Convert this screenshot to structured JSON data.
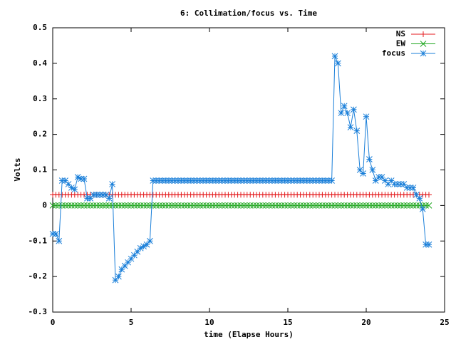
{
  "chart_data": {
    "type": "line",
    "title": "6: Collimation/focus vs. Time",
    "x_label": "time (Elapse Hours)",
    "y_label": "Volts",
    "xlim": [
      0,
      25
    ],
    "xticks": [
      0,
      5,
      10,
      15,
      20,
      25
    ],
    "ylim": [
      -0.3,
      0.5
    ],
    "yticks": [
      -0.3,
      -0.2,
      -0.1,
      0,
      0.1,
      0.2,
      0.3,
      0.4,
      0.5
    ],
    "grid": false,
    "legend": "top-right",
    "x": [
      0,
      0.2,
      0.4,
      0.6,
      0.8,
      1,
      1.2,
      1.4,
      1.6,
      1.8,
      2,
      2.2,
      2.4,
      2.6,
      2.8,
      3,
      3.2,
      3.4,
      3.6,
      3.8,
      4,
      4.2,
      4.4,
      4.6,
      4.8,
      5,
      5.2,
      5.4,
      5.6,
      5.8,
      6,
      6.2,
      6.4,
      6.6,
      6.8,
      7,
      7.2,
      7.4,
      7.6,
      7.8,
      8,
      8.2,
      8.4,
      8.6,
      8.8,
      9,
      9.2,
      9.4,
      9.6,
      9.8,
      10,
      10.2,
      10.4,
      10.6,
      10.8,
      11,
      11.2,
      11.4,
      11.6,
      11.8,
      12,
      12.2,
      12.4,
      12.6,
      12.8,
      13,
      13.2,
      13.4,
      13.6,
      13.8,
      14,
      14.2,
      14.4,
      14.6,
      14.8,
      15,
      15.2,
      15.4,
      15.6,
      15.8,
      16,
      16.2,
      16.4,
      16.6,
      16.8,
      17,
      17.2,
      17.4,
      17.6,
      17.8,
      18,
      18.2,
      18.4,
      18.6,
      18.8,
      19,
      19.2,
      19.4,
      19.6,
      19.8,
      20,
      20.2,
      20.4,
      20.6,
      20.8,
      21,
      21.2,
      21.4,
      21.6,
      21.8,
      22,
      22.2,
      22.4,
      22.6,
      22.8,
      23,
      23.2,
      23.4,
      23.6,
      23.8,
      24
    ],
    "series": [
      {
        "name": "NS",
        "color": "#e41a1c",
        "marker": "plus",
        "values": [
          0.03,
          0.03,
          0.03,
          0.03,
          0.03,
          0.03,
          0.03,
          0.03,
          0.03,
          0.03,
          0.03,
          0.03,
          0.03,
          0.03,
          0.03,
          0.03,
          0.03,
          0.03,
          0.03,
          0.03,
          0.03,
          0.03,
          0.03,
          0.03,
          0.03,
          0.03,
          0.03,
          0.03,
          0.03,
          0.03,
          0.03,
          0.03,
          0.03,
          0.03,
          0.03,
          0.03,
          0.03,
          0.03,
          0.03,
          0.03,
          0.03,
          0.03,
          0.03,
          0.03,
          0.03,
          0.03,
          0.03,
          0.03,
          0.03,
          0.03,
          0.03,
          0.03,
          0.03,
          0.03,
          0.03,
          0.03,
          0.03,
          0.03,
          0.03,
          0.03,
          0.03,
          0.03,
          0.03,
          0.03,
          0.03,
          0.03,
          0.03,
          0.03,
          0.03,
          0.03,
          0.03,
          0.03,
          0.03,
          0.03,
          0.03,
          0.03,
          0.03,
          0.03,
          0.03,
          0.03,
          0.03,
          0.03,
          0.03,
          0.03,
          0.03,
          0.03,
          0.03,
          0.03,
          0.03,
          0.03,
          0.03,
          0.03,
          0.03,
          0.03,
          0.03,
          0.03,
          0.03,
          0.03,
          0.03,
          0.03,
          0.03,
          0.03,
          0.03,
          0.03,
          0.03,
          0.03,
          0.03,
          0.03,
          0.03,
          0.03,
          0.03,
          0.03,
          0.03,
          0.03,
          0.03,
          0.03,
          0.03,
          0.03,
          0.03,
          0.03,
          0.03
        ]
      },
      {
        "name": "EW",
        "color": "#1fa61f",
        "marker": "cross",
        "values": [
          0,
          0,
          0,
          0,
          0,
          0,
          0,
          0,
          0,
          0,
          0,
          0,
          0,
          0,
          0,
          0,
          0,
          0,
          0,
          0,
          0,
          0,
          0,
          0,
          0,
          0,
          0,
          0,
          0,
          0,
          0,
          0,
          0,
          0,
          0,
          0,
          0,
          0,
          0,
          0,
          0,
          0,
          0,
          0,
          0,
          0,
          0,
          0,
          0,
          0,
          0,
          0,
          0,
          0,
          0,
          0,
          0,
          0,
          0,
          0,
          0,
          0,
          0,
          0,
          0,
          0,
          0,
          0,
          0,
          0,
          0,
          0,
          0,
          0,
          0,
          0,
          0,
          0,
          0,
          0,
          0,
          0,
          0,
          0,
          0,
          0,
          0,
          0,
          0,
          0,
          0,
          0,
          0,
          0,
          0,
          0,
          0,
          0,
          0,
          0,
          0,
          0,
          0,
          0,
          0,
          0,
          0,
          0,
          0,
          0,
          0,
          0,
          0,
          0,
          0,
          0,
          0,
          0,
          0,
          0,
          0
        ]
      },
      {
        "name": "focus",
        "color": "#1a7fd9",
        "marker": "star",
        "values": [
          -0.08,
          -0.08,
          -0.1,
          0.07,
          0.07,
          0.06,
          0.05,
          0.045,
          0.08,
          0.075,
          0.075,
          0.02,
          0.02,
          0.03,
          0.03,
          0.03,
          0.03,
          0.03,
          0.02,
          0.06,
          -0.21,
          -0.2,
          -0.18,
          -0.17,
          -0.16,
          -0.15,
          -0.14,
          -0.13,
          -0.12,
          -0.115,
          -0.11,
          -0.1,
          0.07,
          0.07,
          0.07,
          0.07,
          0.07,
          0.07,
          0.07,
          0.07,
          0.07,
          0.07,
          0.07,
          0.07,
          0.07,
          0.07,
          0.07,
          0.07,
          0.07,
          0.07,
          0.07,
          0.07,
          0.07,
          0.07,
          0.07,
          0.07,
          0.07,
          0.07,
          0.07,
          0.07,
          0.07,
          0.07,
          0.07,
          0.07,
          0.07,
          0.07,
          0.07,
          0.07,
          0.07,
          0.07,
          0.07,
          0.07,
          0.07,
          0.07,
          0.07,
          0.07,
          0.07,
          0.07,
          0.07,
          0.07,
          0.07,
          0.07,
          0.07,
          0.07,
          0.07,
          0.07,
          0.07,
          0.07,
          0.07,
          0.07,
          0.42,
          0.4,
          0.26,
          0.28,
          0.26,
          0.22,
          0.27,
          0.21,
          0.1,
          0.09,
          0.25,
          0.13,
          0.1,
          0.07,
          0.08,
          0.08,
          0.07,
          0.06,
          0.07,
          0.06,
          0.06,
          0.06,
          0.06,
          0.05,
          0.05,
          0.05,
          0.03,
          0.02,
          -0.01,
          -0.11,
          -0.11
        ]
      }
    ]
  }
}
